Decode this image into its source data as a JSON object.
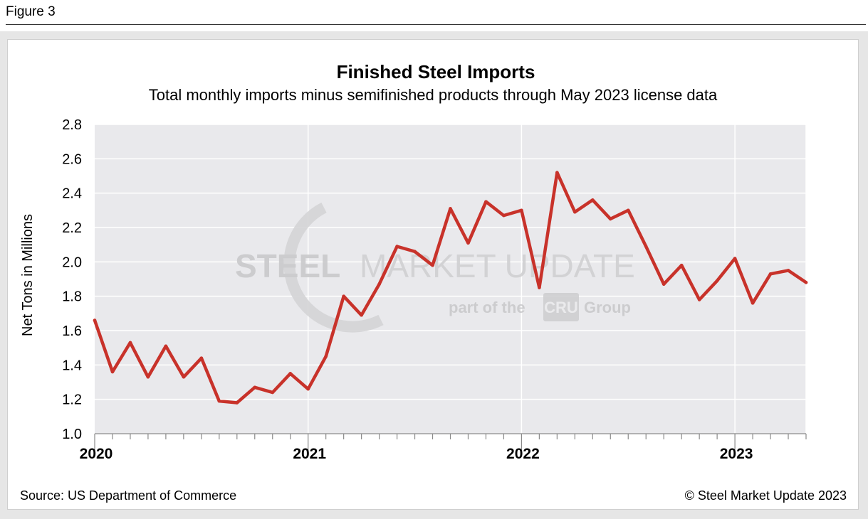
{
  "figure_label": "Figure 3",
  "source": "Source: US Department of Commerce",
  "copyright": "© Steel Market Update 2023",
  "watermark": {
    "main_bold": "STEEL",
    "main_light": "MARKET UPDATE",
    "sub_left": "part of the",
    "sub_box": "CRU",
    "sub_right": "Group"
  },
  "colors": {
    "line": "#c8322a",
    "plot_bg": "#e9e9ec",
    "grid": "#ffffff"
  },
  "chart_data": {
    "type": "line",
    "title": "Finished Steel Imports",
    "subtitle": "Total monthly imports minus semifinished products through May 2023 license data",
    "ylabel": "Net Tons in Millions",
    "xlabel": "",
    "ylim": [
      1.0,
      2.8
    ],
    "yticks": [
      "1.0",
      "1.2",
      "1.4",
      "1.6",
      "1.8",
      "2.0",
      "2.2",
      "2.4",
      "2.6",
      "2.8"
    ],
    "xticks": [
      {
        "label": "2020",
        "index": 0
      },
      {
        "label": "2021",
        "index": 12
      },
      {
        "label": "2022",
        "index": 24
      },
      {
        "label": "2023",
        "index": 36
      }
    ],
    "months": [
      "Jan 2020",
      "Feb 2020",
      "Mar 2020",
      "Apr 2020",
      "May 2020",
      "Jun 2020",
      "Jul 2020",
      "Aug 2020",
      "Sep 2020",
      "Oct 2020",
      "Nov 2020",
      "Dec 2020",
      "Jan 2021",
      "Feb 2021",
      "Mar 2021",
      "Apr 2021",
      "May 2021",
      "Jun 2021",
      "Jul 2021",
      "Aug 2021",
      "Sep 2021",
      "Oct 2021",
      "Nov 2021",
      "Dec 2021",
      "Jan 2022",
      "Feb 2022",
      "Mar 2022",
      "Apr 2022",
      "May 2022",
      "Jun 2022",
      "Jul 2022",
      "Aug 2022",
      "Sep 2022",
      "Oct 2022",
      "Nov 2022",
      "Dec 2022",
      "Jan 2023",
      "Feb 2023",
      "Mar 2023",
      "Apr 2023",
      "May 2023"
    ],
    "series": [
      {
        "name": "Finished Steel Imports",
        "values": [
          1.66,
          1.36,
          1.53,
          1.33,
          1.51,
          1.33,
          1.44,
          1.19,
          1.18,
          1.27,
          1.24,
          1.35,
          1.26,
          1.45,
          1.8,
          1.69,
          1.87,
          2.09,
          2.06,
          1.98,
          2.31,
          2.11,
          2.35,
          2.27,
          2.3,
          1.85,
          2.52,
          2.29,
          2.36,
          2.25,
          2.3,
          2.09,
          1.87,
          1.98,
          1.78,
          1.89,
          2.02,
          1.76,
          1.93,
          1.95,
          1.88
        ]
      }
    ]
  }
}
